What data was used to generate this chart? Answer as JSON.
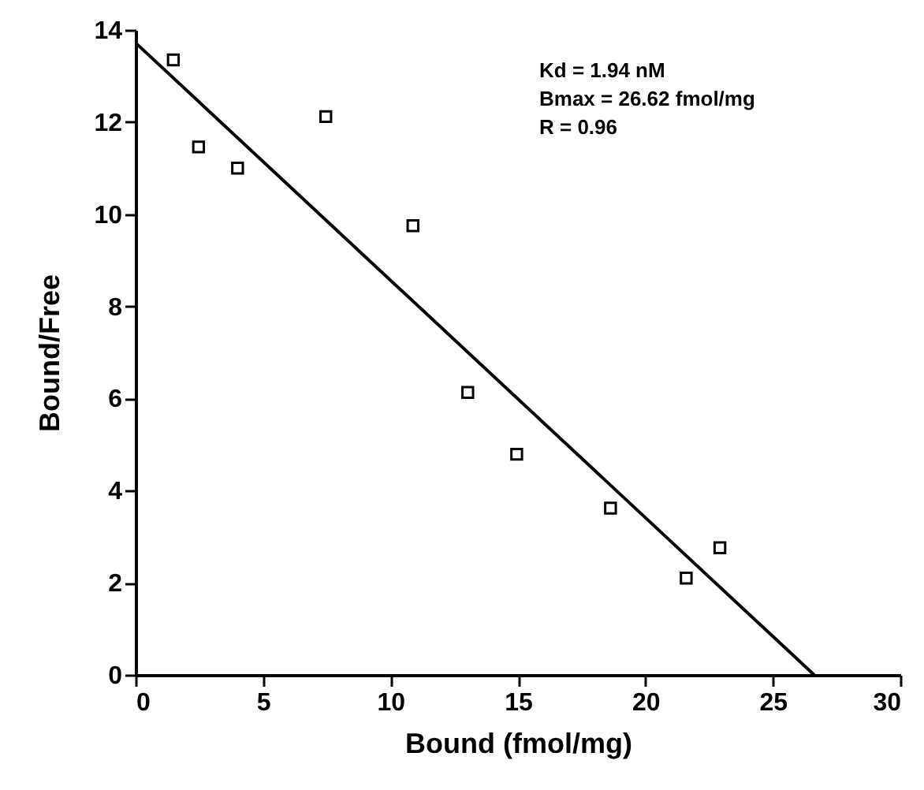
{
  "chart_data": {
    "type": "scatter",
    "xlabel": "Bound (fmol/mg)",
    "ylabel": "Bound/Free",
    "xlim": [
      0,
      30
    ],
    "ylim": [
      0,
      14
    ],
    "xticks": [
      0,
      5,
      10,
      15,
      20,
      25,
      30
    ],
    "yticks": [
      0,
      2,
      4,
      6,
      8,
      10,
      12,
      14
    ],
    "grid": false,
    "annotations": [
      "Kd = 1.94 nM",
      "Bmax = 26.62 fmol/mg",
      "R = 0.96"
    ],
    "series": [
      {
        "marker": "square",
        "color": "#000000",
        "x": [
          1.48,
          2.47,
          4.0,
          7.46,
          10.88,
          13.03,
          14.95,
          18.63,
          21.6,
          22.92
        ],
        "values": [
          13.35,
          11.46,
          11.0,
          12.12,
          9.75,
          6.13,
          4.79,
          3.62,
          2.1,
          2.76
        ]
      },
      {
        "type": "line",
        "color": "#000000",
        "line_style": "solid",
        "x": [
          0,
          26.62
        ],
        "values": [
          13.72,
          0
        ]
      }
    ]
  }
}
